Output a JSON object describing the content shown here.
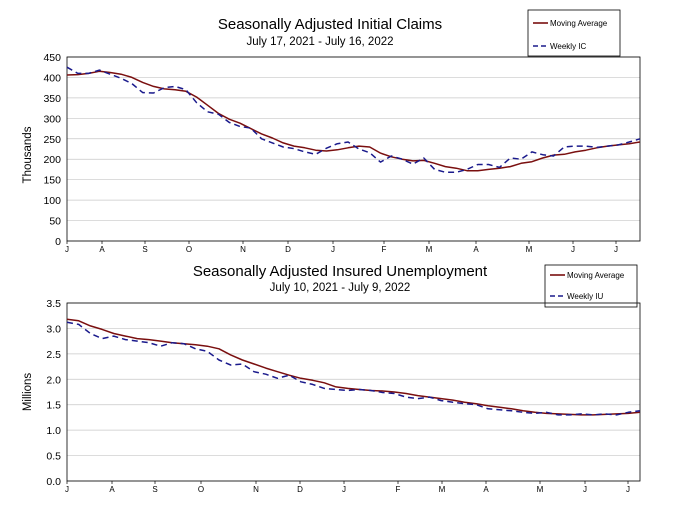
{
  "chart_data": [
    {
      "type": "line",
      "title": "Seasonally Adjusted Initial Claims",
      "subtitle": "July 17, 2021 - July 16, 2022",
      "xlabel": "",
      "ylabel": "Thousands",
      "ylim": [
        0,
        450
      ],
      "yticks": [
        "0",
        "50",
        "100",
        "150",
        "200",
        "250",
        "300",
        "350",
        "400",
        "450"
      ],
      "month_labels": [
        "J",
        "A",
        "S",
        "O",
        "N",
        "D",
        "J",
        "F",
        "M",
        "A",
        "M",
        "J",
        "J"
      ],
      "grid": true,
      "legend_position": "top-right",
      "colors": {
        "moving_average": "#7a0f0f",
        "weekly": "#1a1a8c"
      },
      "series": [
        {
          "name": "Moving Average",
          "style": "solid",
          "values": [
            406,
            407,
            410,
            415,
            412,
            408,
            400,
            388,
            378,
            372,
            370,
            366,
            352,
            332,
            312,
            298,
            288,
            275,
            262,
            252,
            240,
            232,
            228,
            222,
            220,
            223,
            228,
            232,
            230,
            215,
            206,
            200,
            196,
            197,
            190,
            182,
            178,
            172,
            172,
            175,
            178,
            182,
            190,
            194,
            203,
            210,
            212,
            218,
            222,
            228,
            232,
            235,
            238,
            242
          ]
        },
        {
          "name": "Weekly IC",
          "style": "dashed",
          "values": [
            425,
            410,
            410,
            418,
            408,
            398,
            385,
            363,
            362,
            375,
            378,
            370,
            338,
            316,
            310,
            290,
            280,
            276,
            250,
            240,
            230,
            226,
            218,
            212,
            227,
            238,
            242,
            225,
            216,
            193,
            208,
            200,
            188,
            203,
            175,
            168,
            168,
            175,
            187,
            187,
            180,
            203,
            200,
            218,
            211,
            208,
            230,
            232,
            232,
            229,
            232,
            235,
            242,
            250
          ]
        }
      ]
    },
    {
      "type": "line",
      "title": "Seasonally Adjusted Insured Unemployment",
      "subtitle": "July 10, 2021 - July 9, 2022",
      "xlabel": "",
      "ylabel": "Millions",
      "ylim": [
        0.0,
        3.5
      ],
      "yticks": [
        "0.0",
        "0.5",
        "1.0",
        "1.5",
        "2.0",
        "2.5",
        "3.0",
        "3.5"
      ],
      "month_labels": [
        "J",
        "A",
        "S",
        "O",
        "N",
        "D",
        "J",
        "F",
        "M",
        "A",
        "M",
        "J",
        "J"
      ],
      "grid": true,
      "legend_position": "top-right",
      "colors": {
        "moving_average": "#7a0f0f",
        "weekly": "#1a1a8c"
      },
      "series": [
        {
          "name": "Moving Average",
          "style": "solid",
          "values": [
            3.18,
            3.15,
            3.05,
            2.98,
            2.9,
            2.85,
            2.8,
            2.78,
            2.75,
            2.72,
            2.7,
            2.68,
            2.65,
            2.6,
            2.48,
            2.38,
            2.3,
            2.22,
            2.15,
            2.08,
            2.02,
            1.98,
            1.93,
            1.85,
            1.82,
            1.8,
            1.78,
            1.77,
            1.75,
            1.72,
            1.68,
            1.65,
            1.62,
            1.59,
            1.55,
            1.52,
            1.48,
            1.45,
            1.42,
            1.38,
            1.35,
            1.33,
            1.32,
            1.31,
            1.3,
            1.3,
            1.31,
            1.32,
            1.33,
            1.35
          ]
        },
        {
          "name": "Weekly IU",
          "style": "dashed",
          "values": [
            3.12,
            3.08,
            2.9,
            2.8,
            2.85,
            2.78,
            2.75,
            2.72,
            2.65,
            2.72,
            2.7,
            2.6,
            2.55,
            2.38,
            2.28,
            2.3,
            2.15,
            2.1,
            2.02,
            2.08,
            1.95,
            1.9,
            1.82,
            1.8,
            1.78,
            1.8,
            1.78,
            1.74,
            1.72,
            1.65,
            1.62,
            1.65,
            1.58,
            1.55,
            1.52,
            1.5,
            1.42,
            1.4,
            1.38,
            1.35,
            1.33,
            1.35,
            1.3,
            1.3,
            1.32,
            1.3,
            1.32,
            1.3,
            1.35,
            1.38
          ]
        }
      ]
    }
  ]
}
